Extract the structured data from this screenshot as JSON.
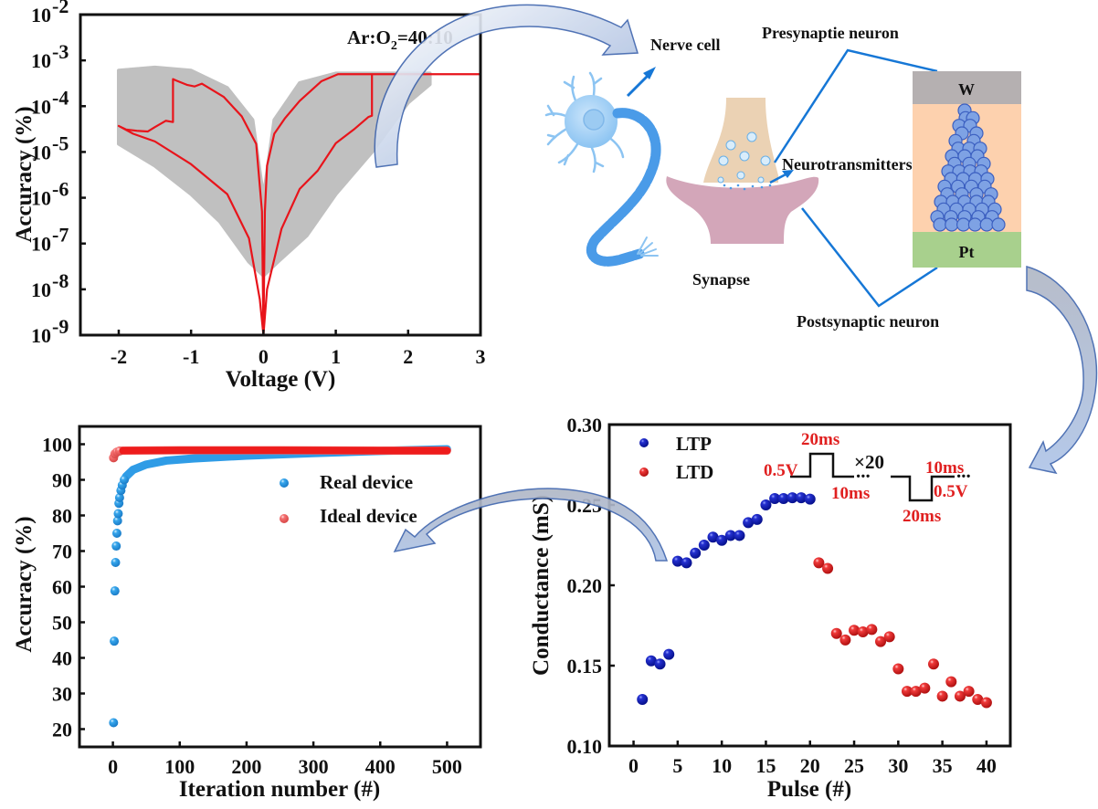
{
  "chart_data": [
    {
      "id": "iv",
      "type": "line",
      "title": "",
      "annotation": "Ar:O2=40:10",
      "annotation_main": "Ar:O",
      "annotation_sub": "2",
      "annotation_tail": "=40:10",
      "xlabel": "Voltage (V)",
      "ylabel": "Accuracy (%)",
      "xlim": [
        -2.53,
        3
      ],
      "ylim_log10": [
        -9,
        -2
      ],
      "xticks": [
        -2,
        -1,
        0,
        1,
        2,
        3
      ],
      "xtick_labels": [
        "-2",
        "-1",
        "0",
        "1",
        "2",
        "3"
      ],
      "yticks_log10": [
        -2,
        -3,
        -4,
        -5,
        -6,
        -7,
        -8,
        -9
      ],
      "ytick_labels": [
        "10",
        "10",
        "10",
        "10",
        "10",
        "10",
        "10",
        "10"
      ],
      "ytick_exponents": [
        "-2",
        "-3",
        "-4",
        "-5",
        "-6",
        "-7",
        "-8",
        "-9"
      ],
      "grid": false,
      "colors": {
        "highlight": "#e8141b",
        "cycles": "#c0c0c0"
      },
      "series": [
        {
          "name": "highlighted cycle",
          "points": [
            [
              3.0,
              0.0005
            ],
            [
              1.03,
              0.0005
            ],
            [
              0.8,
              0.00035
            ],
            [
              0.5,
              0.00013
            ],
            [
              0.3,
              5.5e-05
            ],
            [
              0.15,
              2.5e-05
            ],
            [
              0.05,
              5e-06
            ],
            [
              0.02,
              5e-07
            ],
            [
              0.0,
              1e-09
            ],
            [
              -0.02,
              5e-07
            ],
            [
              -0.1,
              1.5e-05
            ],
            [
              -0.3,
              6e-05
            ],
            [
              -0.55,
              0.00016
            ],
            [
              -0.85,
              0.00031
            ],
            [
              -0.95,
              0.00027
            ],
            [
              -1.05,
              0.00029
            ],
            [
              -1.2,
              0.00036
            ],
            [
              -1.25,
              0.00039
            ],
            [
              -1.25,
              4.5e-05
            ],
            [
              -1.35,
              4.8e-05
            ],
            [
              -1.5,
              3.5e-05
            ],
            [
              -1.6,
              2.8e-05
            ],
            [
              -1.75,
              2.9e-05
            ],
            [
              -1.9,
              3.1e-05
            ],
            [
              -2.0,
              3.7e-05
            ],
            [
              -1.8,
              2.5e-05
            ],
            [
              -1.5,
              1.7e-05
            ],
            [
              -1.0,
              5.4e-06
            ],
            [
              -0.5,
              1.2e-06
            ],
            [
              -0.2,
              1.3e-07
            ],
            [
              -0.05,
              6e-09
            ],
            [
              0.0,
              1e-09
            ],
            [
              0.05,
              1e-08
            ],
            [
              0.25,
              2.1e-07
            ],
            [
              0.5,
              1.55e-06
            ],
            [
              0.75,
              3.9e-06
            ],
            [
              1.0,
              1.55e-05
            ],
            [
              1.25,
              3.1e-05
            ],
            [
              1.45,
              5.8e-05
            ],
            [
              1.5,
              6.2e-05
            ],
            [
              1.5,
              0.0005
            ]
          ]
        }
      ],
      "gray_envelope": {
        "upper": [
          [
            -2.0,
            0.0006
          ],
          [
            -1.5,
            0.0007
          ],
          [
            -1.0,
            0.0006
          ],
          [
            -0.5,
            0.00025
          ],
          [
            -0.15,
            5e-05
          ],
          [
            0.0,
            1e-06
          ],
          [
            0.15,
            5e-05
          ],
          [
            0.5,
            0.00032
          ],
          [
            1.0,
            0.00052
          ],
          [
            2.3,
            0.00052
          ]
        ],
        "lower": [
          [
            2.3,
            0.0003
          ],
          [
            2.0,
            0.00012
          ],
          [
            1.5,
            1e-05
          ],
          [
            1.0,
            1.2e-06
          ],
          [
            0.6,
            1.5e-07
          ],
          [
            0.2,
            4e-08
          ],
          [
            0.0,
            2e-08
          ],
          [
            -0.2,
            4e-08
          ],
          [
            -0.6,
            3e-07
          ],
          [
            -1.0,
            1.2e-06
          ],
          [
            -1.5,
            5e-06
          ],
          [
            -2.0,
            1.5e-05
          ]
        ]
      }
    },
    {
      "id": "accuracy",
      "type": "scatter",
      "title": "",
      "xlabel": "Iteration number (#)",
      "ylabel": "Accuracy (%)",
      "xlim": [
        -50,
        550
      ],
      "ylim": [
        15,
        105
      ],
      "xticks": [
        0,
        100,
        200,
        300,
        400,
        500
      ],
      "xtick_labels": [
        "0",
        "100",
        "200",
        "300",
        "400",
        "500"
      ],
      "yticks": [
        20,
        30,
        40,
        50,
        60,
        70,
        80,
        90,
        100
      ],
      "ytick_labels": [
        "20",
        "30",
        "40",
        "50",
        "60",
        "70",
        "80",
        "90",
        "100"
      ],
      "grid": false,
      "legend_position": "top-right",
      "series": [
        {
          "name": "Real device",
          "color": "#2f9ce6",
          "early_points": [
            [
              1,
              21.8
            ],
            [
              2,
              44.7
            ],
            [
              3,
              58.8
            ],
            [
              4,
              66.8
            ],
            [
              5,
              71.4
            ],
            [
              6,
              75.0
            ],
            [
              7,
              78.5
            ],
            [
              8,
              80.5
            ],
            [
              9,
              83.4
            ],
            [
              10,
              85.0
            ],
            [
              12,
              87.0
            ],
            [
              14,
              88.5
            ],
            [
              17,
              90.0
            ]
          ],
          "curve": [
            [
              20,
              91.0
            ],
            [
              30,
              92.8
            ],
            [
              50,
              94.3
            ],
            [
              80,
              95.4
            ],
            [
              120,
              96.0
            ],
            [
              200,
              96.8
            ],
            [
              300,
              97.5
            ],
            [
              400,
              98.1
            ],
            [
              500,
              98.6
            ]
          ]
        },
        {
          "name": "Ideal device",
          "color": "#f06060",
          "early_points": [
            [
              1,
              96.2
            ],
            [
              3,
              97.3
            ],
            [
              6,
              97.8
            ],
            [
              10,
              98.1
            ]
          ],
          "curve": [
            [
              15,
              98.2
            ],
            [
              100,
              98.3
            ],
            [
              250,
              98.3
            ],
            [
              400,
              98.2
            ],
            [
              500,
              98.2
            ]
          ]
        }
      ]
    },
    {
      "id": "conductance",
      "type": "scatter",
      "title": "",
      "xlabel": "Pulse (#)",
      "ylabel": "Conductance (mS)",
      "xlim": [
        -2.75,
        42.7
      ],
      "ylim": [
        0.1,
        0.3
      ],
      "xticks": [
        0,
        5,
        10,
        15,
        20,
        25,
        30,
        35,
        40
      ],
      "xtick_labels": [
        "0",
        "5",
        "10",
        "15",
        "20",
        "25",
        "30",
        "35",
        "40"
      ],
      "yticks": [
        0.1,
        0.15,
        0.2,
        0.25,
        0.3
      ],
      "ytick_labels": [
        "0.10",
        "0.15",
        "0.20",
        "0.25",
        "0.30"
      ],
      "grid": false,
      "legend_position": "top-left",
      "series": [
        {
          "name": "LTP",
          "color": "#0a14b4",
          "x": [
            1,
            2,
            3,
            4,
            5,
            6,
            7,
            8,
            9,
            10,
            11,
            12,
            13,
            14,
            15,
            16,
            17,
            18,
            19,
            20
          ],
          "values": [
            0.129,
            0.153,
            0.151,
            0.157,
            0.215,
            0.214,
            0.22,
            0.225,
            0.23,
            0.228,
            0.231,
            0.231,
            0.239,
            0.241,
            0.25,
            0.254,
            0.254,
            0.2545,
            0.2545,
            0.2536
          ]
        },
        {
          "name": "LTD",
          "color": "#e82424",
          "x": [
            21,
            22,
            23,
            24,
            25,
            26,
            27,
            28,
            29,
            30,
            31,
            32,
            33,
            34,
            35,
            36,
            37,
            38,
            39,
            40
          ],
          "values": [
            0.214,
            0.2105,
            0.17,
            0.166,
            0.172,
            0.171,
            0.1725,
            0.165,
            0.168,
            0.148,
            0.134,
            0.134,
            0.136,
            0.151,
            0.131,
            0.14,
            0.131,
            0.134,
            0.129,
            0.127
          ]
        }
      ],
      "pulse_inset": {
        "potentiation_amplitude": "0.5V",
        "potentiation_width": "20ms",
        "potentiation_interval": "10ms",
        "repeat": "×20",
        "depression_width": "20ms",
        "depression_interval": "10ms",
        "depression_amplitude": "0.5V",
        "ellipsis": "..."
      }
    }
  ],
  "diagram": {
    "nerve_cell_label": "Nerve cell",
    "presynaptic_label": "Presynaptie neuron",
    "neurotransmitters_label": "Neurotransmitters",
    "synapse_label": "Synapse",
    "postsynaptic_label": "Postsynaptic neuron",
    "top_electrode_label": "W",
    "bottom_electrode_label": "Pt",
    "colors": {
      "neuron": "#8cc4f2",
      "axon": "#4a9be8",
      "presynaptic": "#ebd2b4",
      "postsynaptic": "#d3a6b9",
      "vesicle": "#6ab0e6",
      "connector": "#1677d6",
      "w_layer": "#b5b0b1",
      "oxide_layer": "#fdd1ae",
      "pt_layer": "#a8d08d",
      "filament": "#7ea2e4",
      "flow_arrow_fill": "#a9bfe0",
      "flow_arrow_stroke": "#3e64ad"
    }
  }
}
